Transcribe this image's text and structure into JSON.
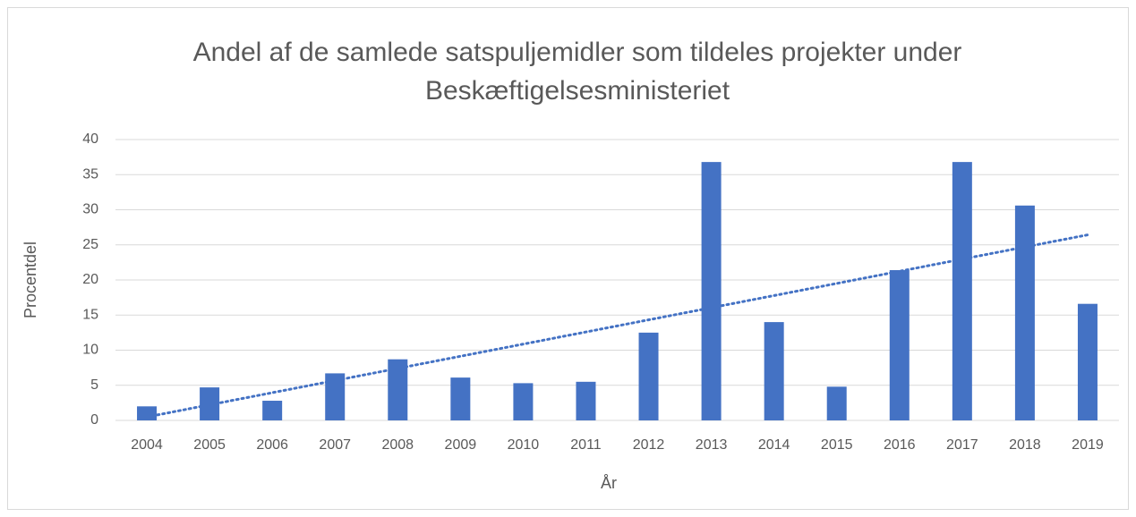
{
  "chart_data": {
    "type": "bar",
    "title": [
      "Andel af de samlede satspuljemidler som tildeles projekter under",
      "Beskæftigelsesministeriet"
    ],
    "x_label": "År",
    "y_label": "Procentdel",
    "categories": [
      "2004",
      "2005",
      "2006",
      "2007",
      "2008",
      "2009",
      "2010",
      "2011",
      "2012",
      "2013",
      "2014",
      "2015",
      "2016",
      "2017",
      "2018",
      "2019"
    ],
    "values": [
      2.0,
      4.7,
      2.8,
      6.7,
      8.7,
      6.1,
      5.3,
      5.5,
      12.5,
      36.8,
      14.0,
      4.8,
      21.4,
      36.8,
      30.6,
      16.6
    ],
    "color": "#4472c4",
    "ylim": [
      0,
      40
    ],
    "yticks": [
      0,
      5,
      10,
      15,
      20,
      25,
      30,
      35,
      40
    ],
    "grid": true,
    "trendline": "linear"
  }
}
